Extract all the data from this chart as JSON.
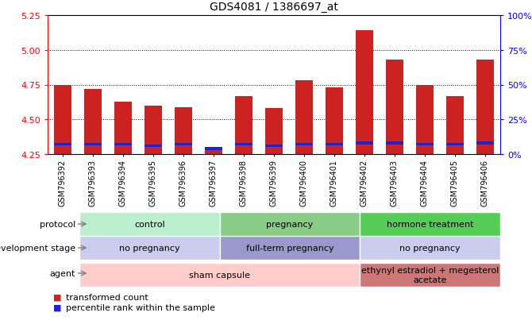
{
  "title": "GDS4081 / 1386697_at",
  "samples": [
    "GSM796392",
    "GSM796393",
    "GSM796394",
    "GSM796395",
    "GSM796396",
    "GSM796397",
    "GSM796398",
    "GSM796399",
    "GSM796400",
    "GSM796401",
    "GSM796402",
    "GSM796403",
    "GSM796404",
    "GSM796405",
    "GSM796406"
  ],
  "transformed_count": [
    4.75,
    4.72,
    4.63,
    4.6,
    4.59,
    4.3,
    4.67,
    4.58,
    4.78,
    4.73,
    5.14,
    4.93,
    4.75,
    4.67,
    4.93
  ],
  "percentile": [
    7,
    7,
    7,
    6,
    7,
    4,
    7,
    6,
    7,
    7,
    8,
    8,
    7,
    7,
    8
  ],
  "base": 4.25,
  "ylim_left": [
    4.25,
    5.25
  ],
  "yticks_left": [
    4.25,
    4.5,
    4.75,
    5.0,
    5.25
  ],
  "yticks_right": [
    0,
    25,
    50,
    75,
    100
  ],
  "bar_color_red": "#cc2222",
  "bar_color_blue": "#2222cc",
  "protocol_groups": [
    {
      "label": "control",
      "start": 0,
      "end": 5,
      "color": "#bbeecc"
    },
    {
      "label": "pregnancy",
      "start": 5,
      "end": 10,
      "color": "#88cc88"
    },
    {
      "label": "hormone treatment",
      "start": 10,
      "end": 15,
      "color": "#55cc55"
    }
  ],
  "dev_stage_groups": [
    {
      "label": "no pregnancy",
      "start": 0,
      "end": 5,
      "color": "#ccccee"
    },
    {
      "label": "full-term pregnancy",
      "start": 5,
      "end": 10,
      "color": "#9999cc"
    },
    {
      "label": "no pregnancy",
      "start": 10,
      "end": 15,
      "color": "#ccccee"
    }
  ],
  "agent_groups": [
    {
      "label": "sham capsule",
      "start": 0,
      "end": 10,
      "color": "#ffcccc"
    },
    {
      "label": "ethynyl estradiol + megesterol\nacetate",
      "start": 10,
      "end": 15,
      "color": "#cc7777"
    }
  ],
  "row_labels": [
    "protocol",
    "development stage",
    "agent"
  ],
  "legend_items": [
    {
      "label": "transformed count",
      "color": "#cc2222"
    },
    {
      "label": "percentile rank within the sample",
      "color": "#2222cc"
    }
  ]
}
